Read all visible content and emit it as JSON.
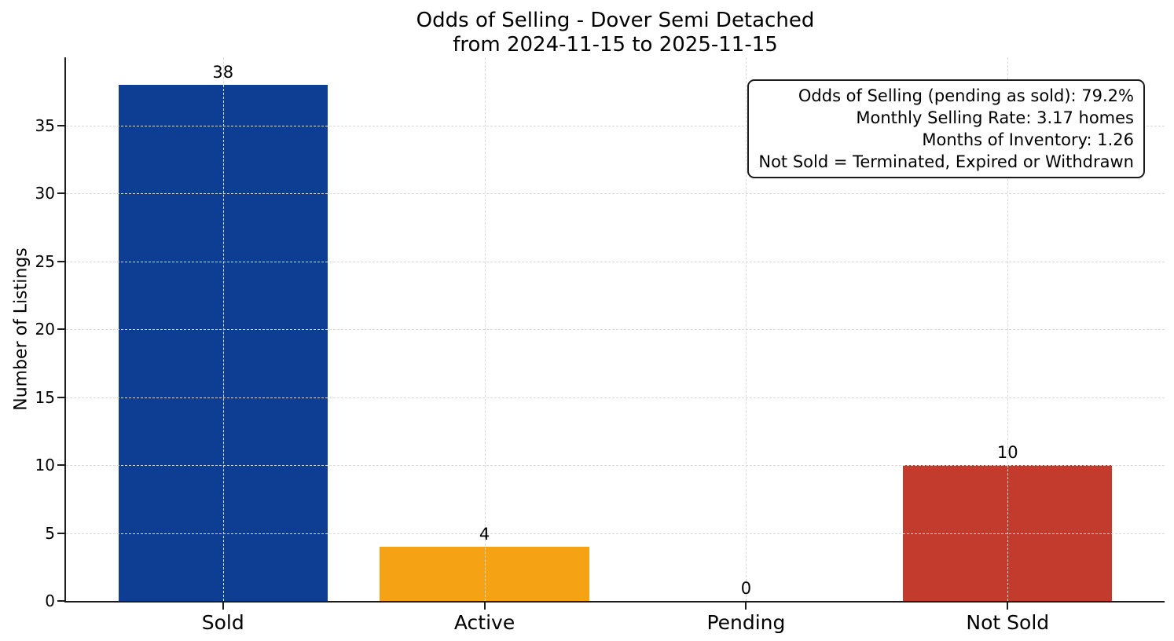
{
  "header": {
    "title_line1": "Odds of Selling - Dover Semi Detached",
    "title_line2": "from 2024-11-15 to 2025-11-15"
  },
  "axes": {
    "ylabel": "Number of Listings",
    "xlabel": ""
  },
  "colors": {
    "sold_bar": "#0e3d94",
    "active_bar": "#f5a214",
    "pending_bar": "#808080",
    "not_sold_bar": "#c33b2c",
    "grid": "#d9d9d9",
    "spine": "#1c1c1c"
  },
  "chart_data": {
    "type": "bar",
    "title": "Odds of Selling - Dover Semi Detached\nfrom 2024-11-15 to 2025-11-15",
    "categories": [
      "Sold",
      "Active",
      "Pending",
      "Not Sold"
    ],
    "values": [
      38,
      4,
      0,
      10
    ],
    "value_labels": [
      "38",
      "4",
      "0",
      "10"
    ],
    "bar_colors": [
      "#0e3d94",
      "#f5a214",
      "#808080",
      "#c33b2c"
    ],
    "xlabel": "",
    "ylabel": "Number of Listings",
    "ylim": [
      0,
      40
    ],
    "yticks": [
      0,
      5,
      10,
      15,
      20,
      25,
      30,
      35
    ],
    "grid": "dashed, horizontal at yticks and vertical at category centers, drawn above bars",
    "legend": null,
    "annotation_lines": [
      "Odds of Selling (pending as sold): 79.2%",
      "Monthly Selling Rate: 3.17 homes",
      "Months of Inventory: 1.26",
      "Not Sold = Terminated, Expired or Withdrawn"
    ]
  }
}
